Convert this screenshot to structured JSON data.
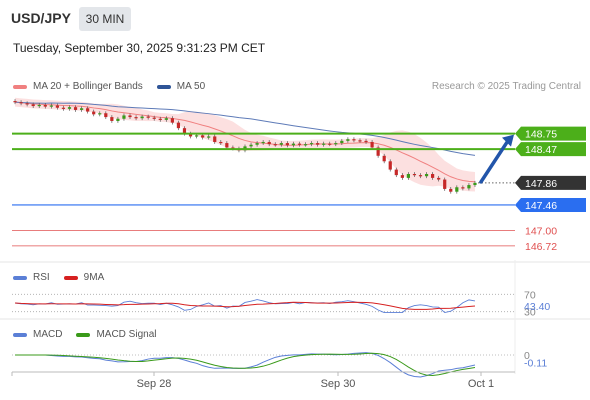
{
  "header": {
    "symbol": "USD/JPY",
    "timeframe": "30 MIN",
    "datetime": "Tuesday, September 30, 2025 9:31:23 PM CET",
    "research": "Research © 2025 Trading Central"
  },
  "legends": {
    "main": [
      {
        "label": "MA 20 + Bollinger Bands",
        "color": "#f08080"
      },
      {
        "label": "MA 50",
        "color": "#2f5597"
      }
    ],
    "rsi": [
      {
        "label": "RSI",
        "color": "#5b7fd6"
      },
      {
        "label": "9MA",
        "color": "#d62020"
      }
    ],
    "macd": [
      {
        "label": "MACD",
        "color": "#5b7fd6"
      },
      {
        "label": "MACD Signal",
        "color": "#3a9a1a"
      }
    ]
  },
  "colors": {
    "resistance": "#4caf1a",
    "support": "#2a6ef0",
    "target": "#e05050",
    "last_price_bg": "#333333",
    "arrow": "#2255aa"
  },
  "chart_data": [
    {
      "type": "candlestick",
      "name": "price",
      "ylim": [
        146.5,
        149.45
      ],
      "x_ticks": [
        "Sep 28",
        "Sep 30",
        "Oct 1"
      ],
      "levels": [
        {
          "label": "148.75",
          "value": 148.75,
          "kind": "resistance"
        },
        {
          "label": "148.47",
          "value": 148.47,
          "kind": "resistance"
        },
        {
          "label": "147.86",
          "value": 147.86,
          "kind": "last"
        },
        {
          "label": "147.46",
          "value": 147.46,
          "kind": "support"
        },
        {
          "label": "147.00",
          "value": 147.0,
          "kind": "target"
        },
        {
          "label": "146.72",
          "value": 146.72,
          "kind": "target"
        }
      ],
      "close": [
        149.32,
        149.3,
        149.28,
        149.25,
        149.27,
        149.24,
        149.26,
        149.22,
        149.2,
        149.23,
        149.18,
        149.21,
        149.15,
        149.1,
        149.12,
        149.05,
        148.98,
        149.02,
        149.08,
        149.05,
        149.03,
        149.06,
        149.04,
        149.02,
        149.0,
        149.03,
        148.95,
        148.85,
        148.75,
        148.7,
        148.72,
        148.68,
        148.7,
        148.6,
        148.58,
        148.5,
        148.48,
        148.45,
        148.52,
        148.55,
        148.58,
        148.6,
        148.56,
        148.55,
        148.58,
        148.54,
        148.57,
        148.55,
        148.56,
        148.58,
        148.55,
        148.57,
        148.56,
        148.58,
        148.62,
        148.65,
        148.63,
        148.62,
        148.6,
        148.5,
        148.35,
        148.25,
        148.1,
        148.0,
        147.95,
        148.02,
        148.0,
        147.98,
        148.02,
        147.95,
        147.92,
        147.75,
        147.7,
        147.78,
        147.76,
        147.82,
        147.86
      ]
    },
    {
      "type": "line",
      "name": "RSI",
      "ylim": [
        20,
        80
      ],
      "levels": [
        {
          "label": "70",
          "value": 70
        },
        {
          "label": "30",
          "value": 30
        }
      ],
      "last_label": "43.40",
      "last_value": 43.4
    },
    {
      "type": "line",
      "name": "MACD",
      "ylim": [
        -0.18,
        0.12
      ],
      "levels": [
        {
          "label": "0",
          "value": 0
        }
      ],
      "last_label": "-0.11",
      "last_value": -0.11
    }
  ]
}
